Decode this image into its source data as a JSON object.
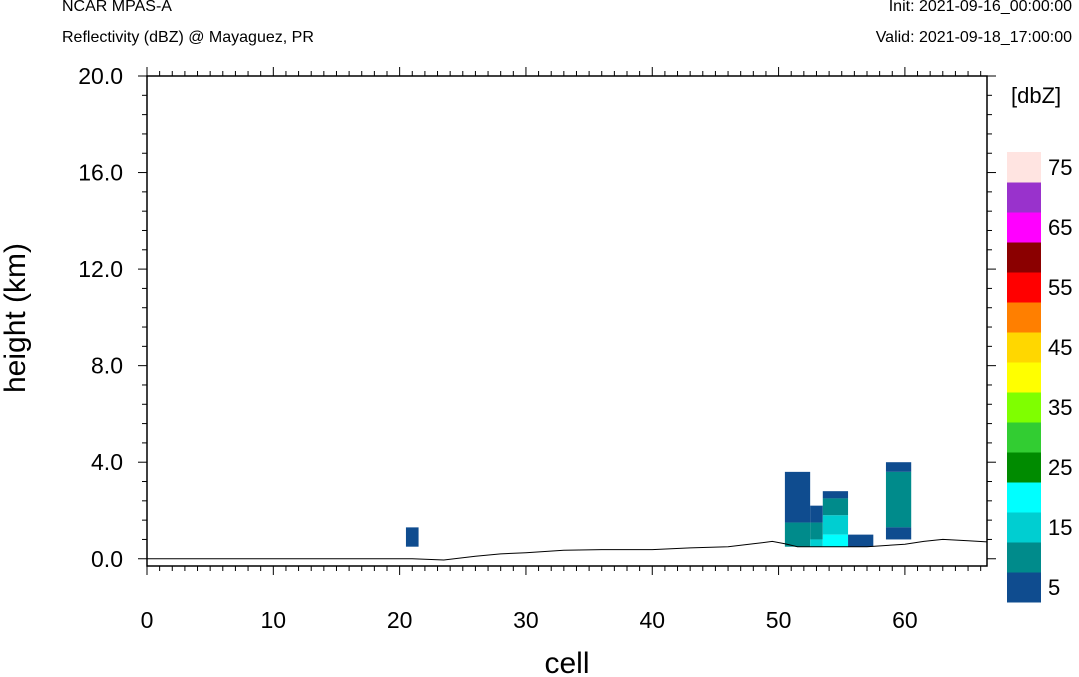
{
  "header": {
    "title_left": "NCAR MPAS-A",
    "subtitle_left": "Reflectivity (dBZ) @ Mayaguez, PR",
    "init": "Init: 2021-09-16_00:00:00",
    "valid": "Valid: 2021-09-18_17:00:00"
  },
  "chart_data": {
    "type": "heatmap",
    "title": "Reflectivity (dBZ) @ Mayaguez, PR",
    "xlabel": "cell",
    "ylabel": "height (km)",
    "xlim": [
      0,
      66.5
    ],
    "ylim": [
      -0.3,
      20.0
    ],
    "x_ticks": [
      0,
      10,
      20,
      30,
      40,
      50,
      60
    ],
    "x_tick_labels": [
      "0",
      "10",
      "20",
      "30",
      "40",
      "50",
      "60"
    ],
    "y_ticks": [
      0,
      4,
      8,
      12,
      16,
      20
    ],
    "y_tick_labels": [
      "0.0",
      "4.0",
      "8.0",
      "12.0",
      "16.0",
      "20.0"
    ],
    "colorbar": {
      "unit_label": "[dbZ]",
      "levels": [
        5,
        10,
        15,
        20,
        25,
        30,
        35,
        40,
        45,
        50,
        55,
        60,
        65,
        70,
        75
      ],
      "colors": [
        "#0f4c8f",
        "#008b8b",
        "#00ced1",
        "#00ffff",
        "#008b00",
        "#32cd32",
        "#7fff00",
        "#ffff00",
        "#ffd700",
        "#ff7f00",
        "#ff0000",
        "#8b0000",
        "#ff00ff",
        "#9932cc",
        "#ffe4e1"
      ],
      "tick_labels": [
        "5",
        "15",
        "25",
        "35",
        "45",
        "55",
        "65",
        "75"
      ]
    },
    "terrain": {
      "x": [
        0,
        21,
        23.5,
        26,
        28,
        30,
        33,
        36,
        40,
        43,
        46,
        48,
        49.5,
        50.5,
        51.5,
        53,
        55,
        57,
        58.5,
        60,
        61.5,
        63,
        65,
        66.5
      ],
      "y": [
        0.0,
        0.0,
        -0.05,
        0.1,
        0.2,
        0.25,
        0.35,
        0.38,
        0.38,
        0.45,
        0.5,
        0.62,
        0.72,
        0.62,
        0.5,
        0.5,
        0.5,
        0.5,
        0.55,
        0.6,
        0.72,
        0.8,
        0.75,
        0.7
      ]
    },
    "cells": [
      {
        "x0": 20.5,
        "x1": 21.5,
        "y0": 0.5,
        "y1": 1.3,
        "dbz": 5
      },
      {
        "x0": 50.5,
        "x1": 52.5,
        "y0": 1.5,
        "y1": 3.6,
        "dbz": 5
      },
      {
        "x0": 50.5,
        "x1": 52.5,
        "y0": 0.5,
        "y1": 1.5,
        "dbz": 10
      },
      {
        "x0": 52.5,
        "x1": 53.5,
        "y0": 1.5,
        "y1": 2.2,
        "dbz": 5
      },
      {
        "x0": 52.5,
        "x1": 53.5,
        "y0": 0.8,
        "y1": 1.5,
        "dbz": 10
      },
      {
        "x0": 52.5,
        "x1": 53.5,
        "y0": 0.5,
        "y1": 0.8,
        "dbz": 15
      },
      {
        "x0": 53.5,
        "x1": 55.5,
        "y0": 2.5,
        "y1": 2.8,
        "dbz": 5
      },
      {
        "x0": 53.5,
        "x1": 55.5,
        "y0": 1.8,
        "y1": 2.5,
        "dbz": 10
      },
      {
        "x0": 53.5,
        "x1": 55.5,
        "y0": 1.0,
        "y1": 1.8,
        "dbz": 15
      },
      {
        "x0": 53.5,
        "x1": 55.5,
        "y0": 0.5,
        "y1": 1.0,
        "dbz": 20
      },
      {
        "x0": 55.5,
        "x1": 57.5,
        "y0": 0.5,
        "y1": 1.0,
        "dbz": 5
      },
      {
        "x0": 58.5,
        "x1": 60.5,
        "y0": 3.6,
        "y1": 4.0,
        "dbz": 5
      },
      {
        "x0": 58.5,
        "x1": 60.5,
        "y0": 1.3,
        "y1": 3.6,
        "dbz": 10
      },
      {
        "x0": 58.5,
        "x1": 60.5,
        "y0": 0.8,
        "y1": 1.3,
        "dbz": 5
      }
    ]
  }
}
